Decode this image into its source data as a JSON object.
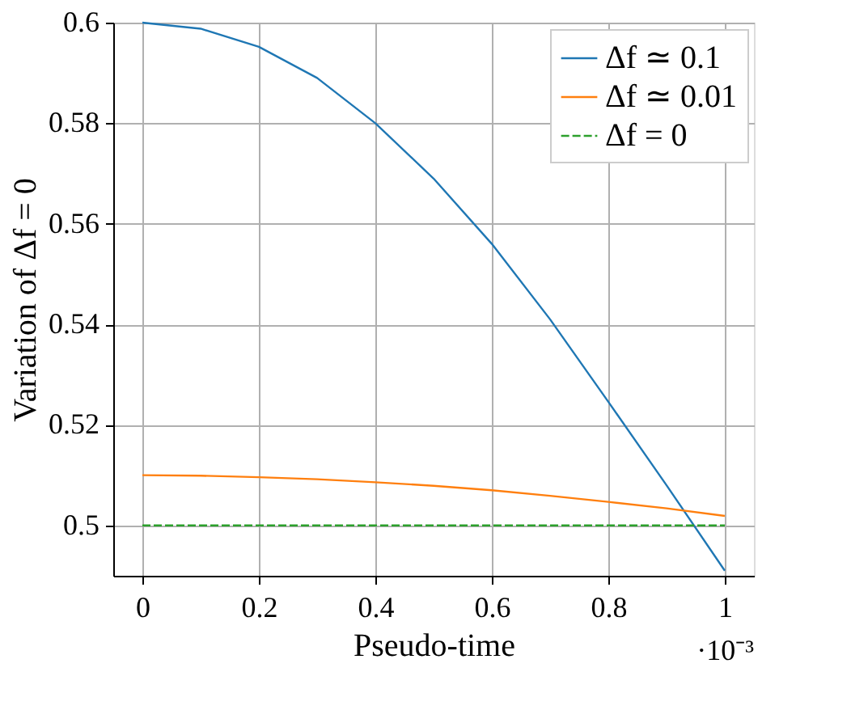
{
  "chart_data": {
    "type": "line",
    "xlabel": "Pseudo-time",
    "ylabel": "Variation of Δf = 0",
    "x": [
      0,
      0.1,
      0.2,
      0.3,
      0.4,
      0.5,
      0.6,
      0.7,
      0.8,
      0.9,
      1.0
    ],
    "series": [
      {
        "name": "Δf ≃ 0.1",
        "color": "#1f77b4",
        "line_style": "solid",
        "values": [
          0.6,
          0.5988,
          0.5952,
          0.589,
          0.58,
          0.569,
          0.556,
          0.541,
          0.5246,
          0.508,
          0.491
        ]
      },
      {
        "name": "Δf ≃ 0.01",
        "color": "#ff7f0e",
        "line_style": "solid",
        "values": [
          0.51,
          0.5099,
          0.5096,
          0.5092,
          0.5086,
          0.5079,
          0.507,
          0.5059,
          0.5047,
          0.5034,
          0.5019
        ]
      },
      {
        "name": "Δf = 0",
        "color": "#2ca02c",
        "line_style": "dashed",
        "values": [
          0.5,
          0.5,
          0.5,
          0.5,
          0.5,
          0.5,
          0.5,
          0.5,
          0.5,
          0.5,
          0.5
        ]
      }
    ],
    "xlim": [
      -0.05,
      1.05
    ],
    "ylim": [
      0.49,
      0.6
    ],
    "xticks": [
      0,
      0.2,
      0.4,
      0.6,
      0.8,
      1
    ],
    "yticks": [
      0.5,
      0.52,
      0.54,
      0.56,
      0.58,
      0.6
    ],
    "annotations": [
      "·10⁻³"
    ],
    "grid": true,
    "legend": "top right",
    "marker": "none"
  }
}
